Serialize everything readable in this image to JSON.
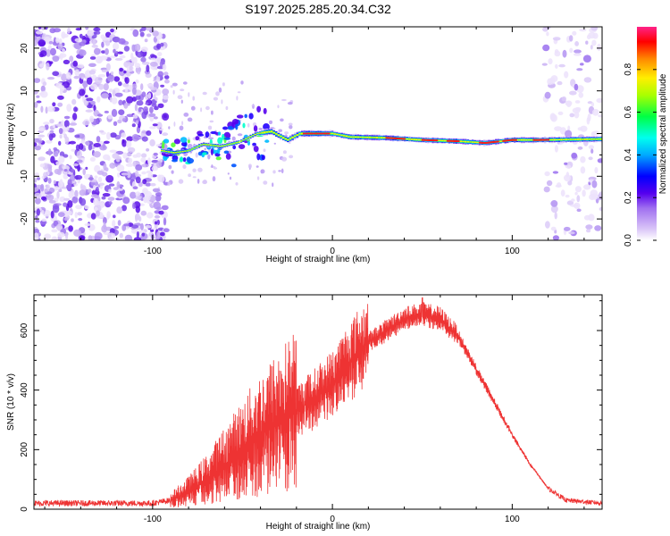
{
  "title": "S197.2025.285.20.34.C32",
  "chart_data": [
    {
      "type": "heatmap",
      "title": "S197.2025.285.20.34.C32",
      "xlabel": "Height of straight line (km)",
      "ylabel": "Frequency (Hz)",
      "xlim": [
        -166,
        150
      ],
      "ylim": [
        -25,
        25
      ],
      "x_ticks": [
        -100,
        0,
        100
      ],
      "y_ticks": [
        -20,
        -10,
        0,
        10,
        20
      ],
      "colorbar": {
        "label": "Normalized spectral amplitude",
        "range": [
          0.0,
          1.0
        ],
        "ticks": [
          0.0,
          0.2,
          0.4,
          0.6,
          0.8
        ]
      },
      "noise_regions": [
        {
          "x_range": [
            -166,
            -92
          ],
          "density": "high"
        },
        {
          "x_range": [
            118,
            150
          ],
          "density": "low"
        }
      ],
      "ridge": [
        {
          "x": -95,
          "y": -4.0
        },
        {
          "x": -88,
          "y": -4.5
        },
        {
          "x": -80,
          "y": -4.0
        },
        {
          "x": -72,
          "y": -2.5
        },
        {
          "x": -62,
          "y": -3.0
        },
        {
          "x": -52,
          "y": -2.0
        },
        {
          "x": -42,
          "y": 0.0
        },
        {
          "x": -34,
          "y": 0.5
        },
        {
          "x": -25,
          "y": -1.5
        },
        {
          "x": -18,
          "y": 0.0
        },
        {
          "x": -10,
          "y": 0.0
        },
        {
          "x": 0,
          "y": 0.0
        },
        {
          "x": 10,
          "y": -0.8
        },
        {
          "x": 30,
          "y": -1.0
        },
        {
          "x": 50,
          "y": -1.5
        },
        {
          "x": 70,
          "y": -1.8
        },
        {
          "x": 85,
          "y": -2.2
        },
        {
          "x": 100,
          "y": -1.5
        },
        {
          "x": 115,
          "y": -1.5
        },
        {
          "x": 130,
          "y": -1.4
        },
        {
          "x": 148,
          "y": -1.3
        }
      ]
    },
    {
      "type": "line",
      "xlabel": "Height of straight line (km)",
      "ylabel": "SNR (10 * v/v)",
      "xlim": [
        -166,
        150
      ],
      "ylim": [
        0,
        720
      ],
      "x_ticks": [
        -100,
        0,
        100
      ],
      "y_ticks": [
        0,
        200,
        400,
        600
      ],
      "color": "#ee3333",
      "envelope_points": [
        {
          "x": -166,
          "y": 20
        },
        {
          "x": -120,
          "y": 20
        },
        {
          "x": -100,
          "y": 20
        },
        {
          "x": -90,
          "y": 30
        },
        {
          "x": -80,
          "y": 60
        },
        {
          "x": -70,
          "y": 100
        },
        {
          "x": -60,
          "y": 150
        },
        {
          "x": -50,
          "y": 200
        },
        {
          "x": -40,
          "y": 250
        },
        {
          "x": -30,
          "y": 290
        },
        {
          "x": -20,
          "y": 330
        },
        {
          "x": -10,
          "y": 370
        },
        {
          "x": 0,
          "y": 420
        },
        {
          "x": 10,
          "y": 500
        },
        {
          "x": 20,
          "y": 560
        },
        {
          "x": 30,
          "y": 600
        },
        {
          "x": 40,
          "y": 640
        },
        {
          "x": 50,
          "y": 655
        },
        {
          "x": 60,
          "y": 640
        },
        {
          "x": 70,
          "y": 580
        },
        {
          "x": 80,
          "y": 470
        },
        {
          "x": 90,
          "y": 360
        },
        {
          "x": 100,
          "y": 250
        },
        {
          "x": 110,
          "y": 150
        },
        {
          "x": 120,
          "y": 70
        },
        {
          "x": 130,
          "y": 30
        },
        {
          "x": 150,
          "y": 20
        }
      ],
      "peak": {
        "x": 50,
        "y": 710
      }
    }
  ]
}
